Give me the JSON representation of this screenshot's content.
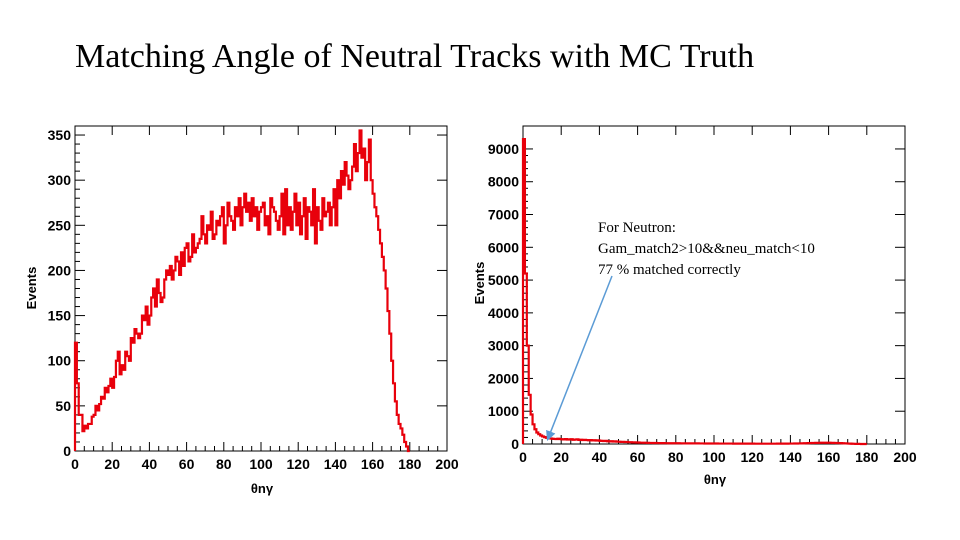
{
  "slide": {
    "title": "Matching Angle of Neutral Tracks with MC Truth"
  },
  "chart_data": [
    {
      "type": "histogram",
      "ylabel": "Events",
      "xlabel": "θnγ",
      "xlim": [
        0,
        200
      ],
      "ylim": [
        0,
        360
      ],
      "xticks": [
        0,
        20,
        40,
        60,
        80,
        100,
        120,
        140,
        160,
        180,
        200
      ],
      "yticks": [
        0,
        50,
        100,
        150,
        200,
        250,
        300,
        350
      ],
      "line_color": "#e8000b",
      "bin_width": 1,
      "x": [
        0,
        1,
        2,
        3,
        4,
        5,
        6,
        7,
        8,
        9,
        10,
        11,
        12,
        13,
        14,
        15,
        16,
        17,
        18,
        19,
        20,
        21,
        22,
        23,
        24,
        25,
        26,
        27,
        28,
        29,
        30,
        31,
        32,
        33,
        34,
        35,
        36,
        37,
        38,
        39,
        40,
        41,
        42,
        43,
        44,
        45,
        46,
        47,
        48,
        49,
        50,
        51,
        52,
        53,
        54,
        55,
        56,
        57,
        58,
        59,
        60,
        61,
        62,
        63,
        64,
        65,
        66,
        67,
        68,
        69,
        70,
        71,
        72,
        73,
        74,
        75,
        76,
        77,
        78,
        79,
        80,
        81,
        82,
        83,
        84,
        85,
        86,
        87,
        88,
        89,
        90,
        91,
        92,
        93,
        94,
        95,
        96,
        97,
        98,
        99,
        100,
        101,
        102,
        103,
        104,
        105,
        106,
        107,
        108,
        109,
        110,
        111,
        112,
        113,
        114,
        115,
        116,
        117,
        118,
        119,
        120,
        121,
        122,
        123,
        124,
        125,
        126,
        127,
        128,
        129,
        130,
        131,
        132,
        133,
        134,
        135,
        136,
        137,
        138,
        139,
        140,
        141,
        142,
        143,
        144,
        145,
        146,
        147,
        148,
        149,
        150,
        151,
        152,
        153,
        154,
        155,
        156,
        157,
        158,
        159,
        160,
        161,
        162,
        163,
        164,
        165,
        166,
        167,
        168,
        169,
        170,
        171,
        172,
        173,
        174,
        175,
        176,
        177,
        178,
        179
      ],
      "values": [
        120,
        75,
        40,
        40,
        22,
        28,
        25,
        30,
        30,
        38,
        40,
        50,
        45,
        52,
        60,
        58,
        70,
        65,
        72,
        80,
        70,
        82,
        100,
        110,
        85,
        95,
        90,
        110,
        105,
        100,
        125,
        120,
        135,
        130,
        125,
        130,
        150,
        145,
        160,
        140,
        150,
        170,
        180,
        160,
        190,
        175,
        165,
        170,
        190,
        200,
        195,
        205,
        190,
        200,
        215,
        210,
        195,
        220,
        205,
        225,
        230,
        210,
        215,
        240,
        220,
        225,
        230,
        235,
        260,
        240,
        230,
        250,
        245,
        265,
        235,
        240,
        255,
        250,
        260,
        270,
        230,
        250,
        275,
        260,
        255,
        245,
        270,
        260,
        280,
        250,
        270,
        285,
        265,
        275,
        255,
        280,
        260,
        270,
        245,
        265,
        270,
        275,
        250,
        260,
        240,
        280,
        270,
        265,
        255,
        245,
        260,
        285,
        240,
        290,
        250,
        270,
        245,
        265,
        285,
        250,
        275,
        240,
        260,
        280,
        235,
        270,
        265,
        250,
        290,
        230,
        270,
        255,
        245,
        280,
        260,
        265,
        275,
        250,
        270,
        290,
        250,
        300,
        280,
        310,
        295,
        320,
        305,
        290,
        300,
        315,
        340,
        310,
        330,
        355,
        325,
        335,
        300,
        320,
        345,
        300,
        285,
        270,
        260,
        245,
        230,
        215,
        200,
        180,
        155,
        130,
        100,
        75,
        55,
        40,
        30,
        25,
        18,
        10,
        5,
        0
      ]
    },
    {
      "type": "histogram",
      "ylabel": "Events",
      "xlabel": "θnγ",
      "xlim": [
        0,
        200
      ],
      "ylim": [
        0,
        9700
      ],
      "xticks": [
        0,
        20,
        40,
        60,
        80,
        100,
        120,
        140,
        160,
        180,
        200
      ],
      "yticks": [
        0,
        1000,
        2000,
        3000,
        4000,
        5000,
        6000,
        7000,
        8000,
        9000
      ],
      "line_color": "#e8000b",
      "bin_width": 1,
      "x": [
        0,
        1,
        2,
        3,
        4,
        5,
        6,
        7,
        8,
        9,
        10,
        11,
        12,
        13,
        14,
        15,
        16,
        17,
        18,
        19,
        20,
        21,
        22,
        23,
        24,
        25,
        26,
        27,
        28,
        29,
        30,
        31,
        32,
        33,
        34,
        35,
        36,
        37,
        38,
        39,
        40,
        41,
        42,
        43,
        44,
        45,
        46,
        47,
        48,
        49,
        50,
        51,
        52,
        53,
        54,
        55,
        56,
        57,
        58,
        59,
        60,
        61,
        62,
        63,
        64,
        65,
        66,
        67,
        68,
        69,
        70,
        71,
        72,
        73,
        74,
        75,
        76,
        77,
        78,
        79,
        80,
        81,
        82,
        83,
        84,
        85,
        86,
        87,
        88,
        89,
        90,
        91,
        92,
        93,
        94,
        95,
        96,
        97,
        98,
        99,
        100,
        101,
        102,
        103,
        104,
        105,
        106,
        107,
        108,
        109,
        110,
        111,
        112,
        113,
        114,
        115,
        116,
        117,
        118,
        119,
        120,
        121,
        122,
        123,
        124,
        125,
        126,
        127,
        128,
        129,
        130,
        131,
        132,
        133,
        134,
        135,
        136,
        137,
        138,
        139,
        140,
        141,
        142,
        143,
        144,
        145,
        146,
        147,
        148,
        149,
        150,
        151,
        152,
        153,
        154,
        155,
        156,
        157,
        158,
        159,
        160,
        161,
        162,
        163,
        164,
        165,
        166,
        167,
        168,
        169,
        170,
        171,
        172,
        173,
        174,
        175,
        176,
        177,
        178,
        179
      ],
      "values": [
        9300,
        5200,
        3000,
        1500,
        900,
        600,
        450,
        350,
        300,
        260,
        230,
        210,
        190,
        175,
        170,
        160,
        155,
        150,
        160,
        150,
        145,
        140,
        150,
        135,
        140,
        145,
        130,
        135,
        140,
        125,
        130,
        120,
        125,
        120,
        115,
        120,
        110,
        115,
        105,
        110,
        100,
        95,
        90,
        95,
        85,
        80,
        85,
        75,
        80,
        70,
        70,
        65,
        65,
        60,
        60,
        55,
        55,
        50,
        50,
        45,
        45,
        40,
        40,
        38,
        36,
        35,
        33,
        32,
        30,
        30,
        28,
        28,
        26,
        26,
        25,
        25,
        24,
        24,
        23,
        23,
        22,
        22,
        21,
        21,
        20,
        20,
        20,
        19,
        19,
        18,
        18,
        18,
        17,
        17,
        17,
        16,
        16,
        16,
        15,
        15,
        15,
        15,
        14,
        14,
        14,
        14,
        13,
        13,
        13,
        13,
        12,
        12,
        12,
        12,
        12,
        11,
        11,
        11,
        11,
        11,
        11,
        10,
        10,
        10,
        10,
        10,
        10,
        10,
        10,
        10,
        10,
        10,
        10,
        11,
        11,
        11,
        12,
        12,
        12,
        13,
        13,
        14,
        15,
        16,
        17,
        18,
        20,
        22,
        24,
        26,
        28,
        30,
        32,
        34,
        35,
        36,
        37,
        38,
        38,
        38,
        37,
        36,
        35,
        33,
        31,
        29,
        26,
        23,
        20,
        17,
        14,
        11,
        8,
        6,
        4,
        3,
        2,
        1,
        0,
        0
      ],
      "annotation": {
        "lines": [
          "For Neutron:",
          "Gam_match2>10&&neu_match<10",
          "77 % matched correctly"
        ],
        "arrow_target_x": 13,
        "arrow_target_y": 150,
        "arrow_color": "#5b9bd5"
      }
    }
  ]
}
